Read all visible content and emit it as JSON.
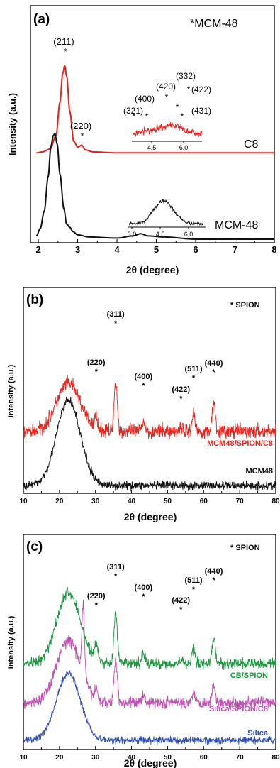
{
  "chart_data": [
    {
      "panel": "(a)",
      "type": "line",
      "xlabel": "2θ (degree)",
      "ylabel": "Intensity (a.u.)",
      "xlim": [
        1.8,
        8
      ],
      "x_ticks": [
        "2",
        "3",
        "4",
        "5",
        "6",
        "7",
        "8"
      ],
      "legend_note": "*MCM-48",
      "series": [
        {
          "name": "C8",
          "color": "#e8231c",
          "x": [
            1.95,
            2.1,
            2.3,
            2.45,
            2.55,
            2.62,
            2.67,
            2.72,
            2.8,
            2.9,
            3.0,
            3.1,
            3.2,
            3.4,
            4.0,
            5.0,
            6.0,
            7.0,
            8.0
          ],
          "y": [
            0.02,
            0.03,
            0.06,
            0.2,
            0.55,
            0.85,
            0.93,
            0.82,
            0.45,
            0.14,
            0.08,
            0.1,
            0.05,
            0.03,
            0.02,
            0.02,
            0.02,
            0.02,
            0.02
          ]
        },
        {
          "name": "MCM-48",
          "color": "#111111",
          "x": [
            1.95,
            2.05,
            2.15,
            2.25,
            2.32,
            2.38,
            2.42,
            2.48,
            2.55,
            2.65,
            2.72,
            2.8,
            2.88,
            3.0,
            3.3,
            4.0,
            4.4,
            4.6,
            4.8,
            5.2,
            6.0,
            7.0,
            8.0
          ],
          "y": [
            0.05,
            0.12,
            0.28,
            0.6,
            0.88,
            0.98,
            1.0,
            0.9,
            0.62,
            0.3,
            0.16,
            0.13,
            0.09,
            0.06,
            0.04,
            0.03,
            0.05,
            0.07,
            0.05,
            0.04,
            0.02,
            0.02,
            0.02
          ]
        }
      ],
      "peak_labels_c8": [
        "(211)",
        "(220)"
      ],
      "inset_c8": {
        "labels": [
          "(321)",
          "(400)",
          "(420)",
          "(332)",
          "(422)",
          "(431)"
        ],
        "x_ticks": [
          "4,5",
          "6,0"
        ]
      },
      "inset_mcm48": {
        "x_ticks": [
          "3,0",
          "4,5",
          "6,0"
        ]
      }
    },
    {
      "panel": "(b)",
      "type": "line",
      "xlabel": "2θ (degree)",
      "ylabel": "Intensity (a.u.)",
      "xlim": [
        10,
        80
      ],
      "x_ticks": [
        "10",
        "20",
        "30",
        "40",
        "50",
        "60",
        "70",
        "80"
      ],
      "legend_note": "* SPION",
      "series": [
        {
          "name": "MCM48/SPION/C8",
          "color": "#e8231c"
        },
        {
          "name": "MCM48",
          "color": "#111111"
        }
      ],
      "peaks": [
        {
          "label": "(220)",
          "x": 30.2
        },
        {
          "label": "(311)",
          "x": 35.6
        },
        {
          "label": "(400)",
          "x": 43.3
        },
        {
          "label": "(422)",
          "x": 53.7
        },
        {
          "label": "(511)",
          "x": 57.2
        },
        {
          "label": "(440)",
          "x": 62.8
        }
      ]
    },
    {
      "panel": "(c)",
      "type": "line",
      "xlabel": "2θ (degree)",
      "ylabel": "Intensity (a.u.)",
      "xlim": [
        10,
        80
      ],
      "x_ticks": [
        "10",
        "20",
        "30",
        "40",
        "50",
        "60",
        "70",
        "80"
      ],
      "legend_note": "* SPION",
      "series": [
        {
          "name": "CB/SPION",
          "color": "#1e9640"
        },
        {
          "name": "Silica/SPION/C8",
          "color": "#c04fb3"
        },
        {
          "name": "Silica",
          "color": "#2f4fb0"
        }
      ],
      "peaks": [
        {
          "label": "(220)",
          "x": 30.2
        },
        {
          "label": "(311)",
          "x": 35.6
        },
        {
          "label": "(400)",
          "x": 43.3
        },
        {
          "label": "(422)",
          "x": 53.7
        },
        {
          "label": "(511)",
          "x": 57.2
        },
        {
          "label": "(440)",
          "x": 62.8
        }
      ]
    }
  ]
}
